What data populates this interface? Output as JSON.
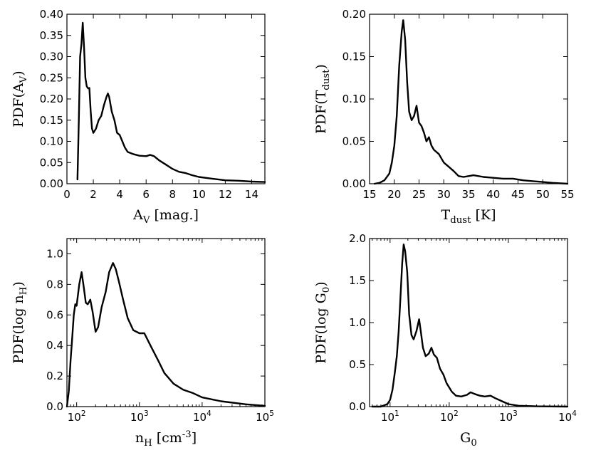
{
  "chart_data": [
    {
      "id": "av",
      "type": "line",
      "xlabel": "A_V [mag.]",
      "ylabel": "PDF(A_V)",
      "xscale": "linear",
      "xlim": [
        0,
        15
      ],
      "ylim": [
        0,
        0.4
      ],
      "xticks": [
        0,
        2,
        4,
        6,
        8,
        10,
        12,
        14
      ],
      "xtick_labels": [
        "0",
        "2",
        "4",
        "6",
        "8",
        "10",
        "12",
        "14"
      ],
      "yticks": [
        0,
        0.05,
        0.1,
        0.15,
        0.2,
        0.25,
        0.3,
        0.35,
        0.4
      ],
      "ytick_labels": [
        "0.00",
        "0.05",
        "0.10",
        "0.15",
        "0.20",
        "0.25",
        "0.30",
        "0.35",
        "0.40"
      ],
      "series": [
        {
          "name": "PDF(A_V)",
          "x": [
            0.8,
            0.9,
            1.0,
            1.1,
            1.2,
            1.3,
            1.4,
            1.5,
            1.6,
            1.7,
            1.8,
            1.9,
            2.0,
            2.2,
            2.4,
            2.6,
            2.8,
            3.0,
            3.1,
            3.2,
            3.4,
            3.6,
            3.8,
            4.0,
            4.2,
            4.4,
            4.6,
            5.0,
            5.5,
            6.0,
            6.3,
            6.6,
            7.0,
            7.5,
            8.0,
            8.5,
            9.0,
            9.5,
            10.0,
            11.0,
            12.0,
            13.0,
            14.0,
            15.0
          ],
          "y": [
            0.01,
            0.15,
            0.3,
            0.33,
            0.38,
            0.32,
            0.25,
            0.23,
            0.225,
            0.226,
            0.17,
            0.13,
            0.12,
            0.13,
            0.15,
            0.16,
            0.185,
            0.205,
            0.213,
            0.205,
            0.17,
            0.15,
            0.12,
            0.115,
            0.1,
            0.085,
            0.075,
            0.07,
            0.066,
            0.065,
            0.068,
            0.065,
            0.055,
            0.045,
            0.035,
            0.028,
            0.025,
            0.02,
            0.016,
            0.012,
            0.008,
            0.007,
            0.005,
            0.004
          ]
        }
      ]
    },
    {
      "id": "tdust",
      "type": "line",
      "xlabel": "T_dust [K]",
      "ylabel": "PDF(T_dust)",
      "xscale": "linear",
      "xlim": [
        15,
        55
      ],
      "ylim": [
        0,
        0.2
      ],
      "xticks": [
        15,
        20,
        25,
        30,
        35,
        40,
        45,
        50,
        55
      ],
      "xtick_labels": [
        "15",
        "20",
        "25",
        "30",
        "35",
        "40",
        "45",
        "50",
        "55"
      ],
      "yticks": [
        0,
        0.05,
        0.1,
        0.15,
        0.2
      ],
      "ytick_labels": [
        "0.00",
        "0.05",
        "0.10",
        "0.15",
        "0.20"
      ],
      "series": [
        {
          "name": "PDF(T_dust)",
          "x": [
            16,
            17,
            18,
            19,
            19.5,
            20,
            20.5,
            21,
            21.5,
            21.8,
            22.2,
            22.6,
            23,
            23.5,
            24,
            24.5,
            25,
            25.5,
            26,
            26.5,
            27,
            27.5,
            28,
            29,
            30,
            31,
            32,
            33,
            34,
            35,
            36,
            38,
            40,
            42,
            44,
            46,
            48,
            50,
            52,
            55
          ],
          "y": [
            0.0,
            0.001,
            0.004,
            0.012,
            0.025,
            0.045,
            0.08,
            0.14,
            0.18,
            0.193,
            0.17,
            0.12,
            0.085,
            0.075,
            0.08,
            0.092,
            0.072,
            0.068,
            0.06,
            0.05,
            0.055,
            0.045,
            0.04,
            0.035,
            0.025,
            0.02,
            0.015,
            0.009,
            0.008,
            0.009,
            0.01,
            0.008,
            0.007,
            0.006,
            0.006,
            0.004,
            0.003,
            0.002,
            0.001,
            0.0
          ]
        }
      ]
    },
    {
      "id": "nh",
      "type": "line",
      "xlabel": "n_H [cm^-3]",
      "ylabel": "PDF(log n_H)",
      "xscale": "log",
      "xlim": [
        70,
        100000
      ],
      "ylim": [
        0,
        1.1
      ],
      "xticks": [
        100,
        1000,
        10000,
        100000
      ],
      "xtick_labels": [
        "10^2",
        "10^3",
        "10^4",
        "10^5"
      ],
      "yticks": [
        0,
        0.2,
        0.4,
        0.6,
        0.8,
        1.0
      ],
      "ytick_labels": [
        "0.0",
        "0.2",
        "0.4",
        "0.6",
        "0.8",
        "1.0"
      ],
      "series": [
        {
          "name": "PDF(log n_H)",
          "x": [
            70,
            75,
            80,
            85,
            90,
            95,
            100,
            110,
            120,
            130,
            140,
            150,
            165,
            180,
            200,
            220,
            250,
            290,
            330,
            380,
            420,
            470,
            550,
            650,
            800,
            1000,
            1200,
            1500,
            2000,
            2500,
            3500,
            5000,
            7000,
            10000,
            20000,
            50000,
            100000
          ],
          "y": [
            0.0,
            0.1,
            0.3,
            0.45,
            0.6,
            0.67,
            0.66,
            0.8,
            0.88,
            0.78,
            0.68,
            0.67,
            0.7,
            0.62,
            0.49,
            0.52,
            0.65,
            0.75,
            0.88,
            0.94,
            0.9,
            0.82,
            0.7,
            0.58,
            0.5,
            0.48,
            0.48,
            0.4,
            0.3,
            0.22,
            0.15,
            0.11,
            0.09,
            0.06,
            0.035,
            0.015,
            0.005
          ]
        }
      ]
    },
    {
      "id": "g0",
      "type": "line",
      "xlabel": "G_0",
      "ylabel": "PDF(log G_0)",
      "xscale": "log",
      "xlim": [
        4.5,
        10000
      ],
      "ylim": [
        0,
        2.0
      ],
      "xticks": [
        10,
        100,
        1000,
        10000
      ],
      "xtick_labels": [
        "10^1",
        "10^2",
        "10^3",
        "10^4"
      ],
      "yticks": [
        0,
        0.5,
        1.0,
        1.5,
        2.0
      ],
      "ytick_labels": [
        "0.0",
        "0.5",
        "1.0",
        "1.5",
        "2.0"
      ],
      "series": [
        {
          "name": "PDF(log G_0)",
          "x": [
            5,
            7,
            9,
            10,
            11,
            12,
            13,
            14,
            15,
            16,
            17,
            18,
            19.5,
            21,
            23,
            25,
            28,
            31,
            33,
            36,
            40,
            45,
            50,
            55,
            62,
            70,
            80,
            90,
            110,
            130,
            160,
            200,
            230,
            270,
            330,
            400,
            500,
            600,
            800,
            1000,
            1500,
            3000,
            10000
          ],
          "y": [
            0.0,
            0.0,
            0.03,
            0.08,
            0.2,
            0.4,
            0.6,
            0.9,
            1.3,
            1.7,
            1.93,
            1.85,
            1.6,
            1.1,
            0.85,
            0.8,
            0.9,
            1.04,
            0.9,
            0.7,
            0.6,
            0.63,
            0.7,
            0.62,
            0.58,
            0.45,
            0.38,
            0.28,
            0.18,
            0.13,
            0.12,
            0.14,
            0.17,
            0.15,
            0.13,
            0.12,
            0.13,
            0.1,
            0.06,
            0.03,
            0.01,
            0.003,
            0.0
          ]
        }
      ]
    }
  ]
}
